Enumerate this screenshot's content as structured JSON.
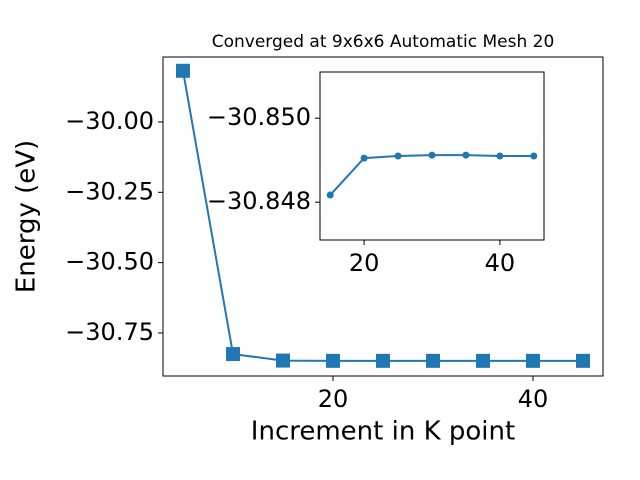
{
  "chart_data": [
    {
      "type": "line",
      "title": "Converged at 9x6x6 Automatic Mesh 20",
      "x_label": "Increment in K point",
      "y_label": "Energy (eV)",
      "x": [
        5,
        10,
        15,
        20,
        25,
        30,
        35,
        40,
        45
      ],
      "series": [
        {
          "color": "#1f77b4",
          "marker": "square",
          "values": [
            -29.818,
            -30.825,
            -30.8482,
            -30.8491,
            -30.8491,
            -30.8491,
            -30.8491,
            -30.8491,
            -30.8491
          ]
        }
      ],
      "xlim": [
        3,
        47
      ],
      "ylim": [
        -30.903,
        -29.769
      ],
      "xticks": [
        20,
        40
      ],
      "yticks": [
        {
          "value": -30.75,
          "label": "−30.75"
        },
        {
          "value": -30.5,
          "label": "−30.50"
        },
        {
          "value": -30.25,
          "label": "−30.25"
        },
        {
          "value": -30.0,
          "label": "−30.00"
        }
      ]
    },
    {
      "type": "line",
      "x": [
        15,
        20,
        25,
        30,
        35,
        40,
        45
      ],
      "series": [
        {
          "color": "#1f77b4",
          "marker": "circle",
          "values": [
            -30.84817,
            -30.84905,
            -30.8491,
            -30.84912,
            -30.84912,
            -30.8491,
            -30.8491
          ]
        }
      ],
      "xlim": [
        13.5,
        46.5
      ],
      "ylim": [
        -30.8471,
        -30.8511
      ],
      "xticks": [
        20,
        40
      ],
      "yticks": [
        {
          "value": -30.848,
          "label": "−30.848"
        },
        {
          "value": -30.85,
          "label": "−30.850"
        }
      ]
    }
  ]
}
